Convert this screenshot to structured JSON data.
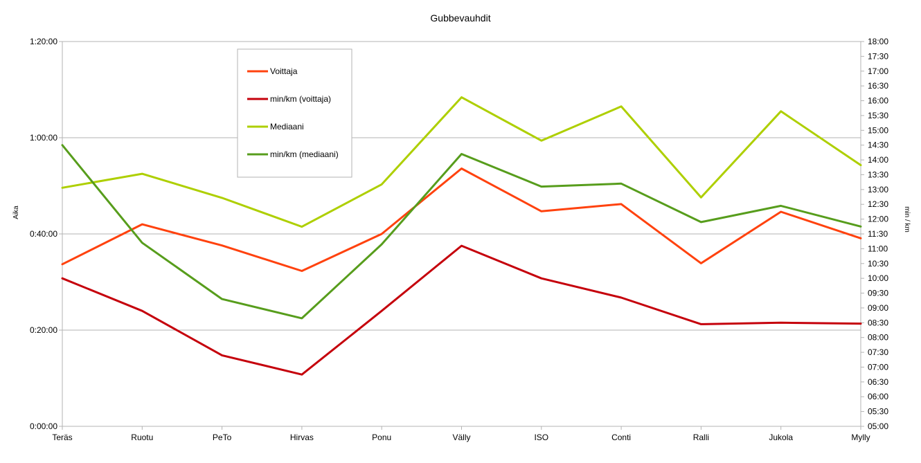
{
  "chart_data": {
    "type": "line",
    "title": "Gubbevauhdit",
    "ylabel": "Aika",
    "y2label": "min / km",
    "categories": [
      "Teräs",
      "Ruotu",
      "PeTo",
      "Hirvas",
      "Ponu",
      "Välly",
      "ISO",
      "Conti",
      "Ralli",
      "Jukola",
      "Mylly"
    ],
    "ylim_minutes": [
      0,
      80
    ],
    "y_ticks": [
      "0:00:00",
      "0:20:00",
      "0:40:00",
      "1:00:00",
      "1:20:00"
    ],
    "y2lim_minutes": [
      5,
      18
    ],
    "y2_ticks": [
      "05:00",
      "05:30",
      "06:00",
      "06:30",
      "07:00",
      "07:30",
      "08:00",
      "08:30",
      "09:00",
      "09:30",
      "10:00",
      "10:30",
      "11:00",
      "11:30",
      "12:00",
      "12:30",
      "13:00",
      "13:30",
      "14:00",
      "14:30",
      "15:00",
      "15:30",
      "16:00",
      "16:30",
      "17:00",
      "17:30",
      "18:00"
    ],
    "grid": true,
    "legend_position": "top-left",
    "series": [
      {
        "name": "Voittaja",
        "axis": "left",
        "color": "#ff420e",
        "values": [
          33.7,
          42.0,
          37.6,
          32.3,
          40.0,
          53.6,
          44.7,
          46.2,
          33.9,
          44.6,
          39.1
        ]
      },
      {
        "name": "min/km (voittaja)",
        "axis": "right",
        "color": "#c5000b",
        "values": [
          10.0,
          8.9,
          7.4,
          6.75,
          8.9,
          11.1,
          10.0,
          9.35,
          8.45,
          8.5,
          8.47
        ]
      },
      {
        "name": "Mediaani",
        "axis": "left",
        "color": "#aecf00",
        "values": [
          49.6,
          52.5,
          47.5,
          41.5,
          50.3,
          68.4,
          59.4,
          66.5,
          47.6,
          65.5,
          54.3
        ]
      },
      {
        "name": "min/km (mediaani)",
        "axis": "right",
        "color": "#579d1c",
        "values": [
          14.5,
          11.2,
          9.3,
          8.65,
          11.15,
          14.2,
          13.1,
          13.2,
          11.9,
          12.45,
          11.75
        ]
      }
    ]
  }
}
